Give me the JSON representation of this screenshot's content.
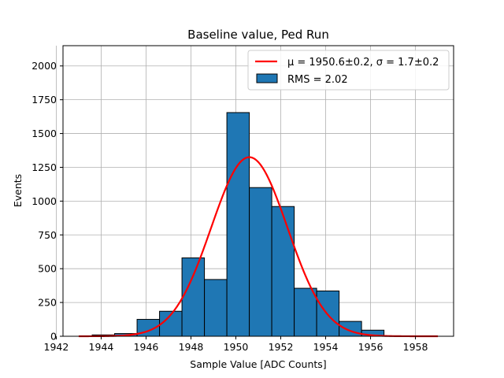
{
  "chart_data": {
    "type": "bar",
    "title": "Baseline value, Ped Run",
    "xlabel": "Sample Value [ADC Counts]",
    "ylabel": "Events",
    "xlim": [
      1942.3,
      1959.7
    ],
    "ylim": [
      0,
      2150
    ],
    "x_ticks": [
      1942,
      1944,
      1946,
      1948,
      1950,
      1952,
      1954,
      1956,
      1958
    ],
    "y_ticks": [
      0,
      250,
      500,
      750,
      1000,
      1250,
      1500,
      1750,
      2000
    ],
    "grid": true,
    "legend_position": "top-right",
    "histogram": {
      "name": "RMS = 2.02",
      "color": "#1f77b4",
      "edge_color": "#000000",
      "bins": [
        {
          "x0": 1942.6,
          "x1": 1943.6,
          "count": 0
        },
        {
          "x0": 1943.6,
          "x1": 1944.6,
          "count": 10
        },
        {
          "x0": 1944.6,
          "x1": 1945.6,
          "count": 20
        },
        {
          "x0": 1945.6,
          "x1": 1946.6,
          "count": 125
        },
        {
          "x0": 1946.6,
          "x1": 1947.6,
          "count": 185
        },
        {
          "x0": 1947.6,
          "x1": 1948.6,
          "count": 580
        },
        {
          "x0": 1948.6,
          "x1": 1949.6,
          "count": 420
        },
        {
          "x0": 1949.6,
          "x1": 1950.6,
          "count": 1655
        },
        {
          "x0": 1950.6,
          "x1": 1951.6,
          "count": 1100
        },
        {
          "x0": 1951.6,
          "x1": 1952.6,
          "count": 960
        },
        {
          "x0": 1952.6,
          "x1": 1953.6,
          "count": 355
        },
        {
          "x0": 1953.6,
          "x1": 1954.6,
          "count": 335
        },
        {
          "x0": 1954.6,
          "x1": 1955.6,
          "count": 110
        },
        {
          "x0": 1955.6,
          "x1": 1956.6,
          "count": 45
        },
        {
          "x0": 1956.6,
          "x1": 1957.6,
          "count": 0
        },
        {
          "x0": 1957.6,
          "x1": 1958.6,
          "count": 0
        },
        {
          "x0": 1958.6,
          "x1": 1959.6,
          "count": 0
        }
      ]
    },
    "fit": {
      "type": "line",
      "name": "μ = 1950.6±0.2, σ = 1.7±0.2",
      "color": "#ff0000",
      "function": "gaussian",
      "mu": 1950.6,
      "sigma": 1.7,
      "amplitude": 1325,
      "x_range": [
        1943,
        1959
      ]
    }
  }
}
